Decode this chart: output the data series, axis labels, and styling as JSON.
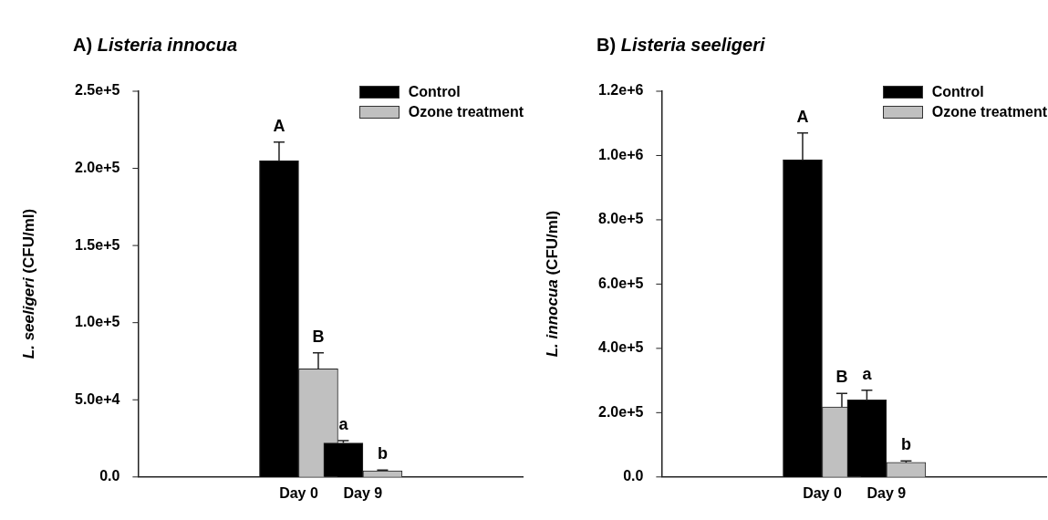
{
  "chart_data": [
    {
      "type": "bar",
      "title": "A) Listeria innocua",
      "ylabel": "L. seeligeri (CFU/ml)",
      "categories": [
        "Day 0",
        "Day 9"
      ],
      "series": [
        {
          "name": "Control",
          "color": "#000000",
          "values": [
            205000,
            22000
          ],
          "errors": [
            12000,
            1500
          ]
        },
        {
          "name": "Ozone treatment",
          "color": "#c0c0c0",
          "values": [
            70000,
            4000
          ],
          "errors": [
            10500,
            500
          ]
        }
      ],
      "ylim": [
        0,
        250000
      ],
      "yticks": [
        {
          "value": 0,
          "label": "0.0"
        },
        {
          "value": 50000,
          "label": "5.0e+4"
        },
        {
          "value": 100000,
          "label": "1.0e+5"
        },
        {
          "value": 150000,
          "label": "1.5e+5"
        },
        {
          "value": 200000,
          "label": "2.0e+5"
        },
        {
          "value": 250000,
          "label": "2.5e+5"
        }
      ],
      "annotations": [
        "A",
        "B",
        "a",
        "b"
      ],
      "legend": "top right",
      "grid": false
    },
    {
      "type": "bar",
      "title": "B) Listeria seeligeri",
      "ylabel": "L. innocua (CFU/ml)",
      "categories": [
        "Day 0",
        "Day 9"
      ],
      "series": [
        {
          "name": "Control",
          "color": "#000000",
          "values": [
            987000,
            240000
          ],
          "errors": [
            83000,
            30000
          ]
        },
        {
          "name": "Ozone treatment",
          "color": "#c0c0c0",
          "values": [
            218000,
            45000
          ],
          "errors": [
            42000,
            5000
          ]
        }
      ],
      "ylim": [
        0,
        1200000
      ],
      "yticks": [
        {
          "value": 0,
          "label": "0.0"
        },
        {
          "value": 200000,
          "label": "2.0e+5"
        },
        {
          "value": 400000,
          "label": "4.0e+5"
        },
        {
          "value": 600000,
          "label": "6.0e+5"
        },
        {
          "value": 800000,
          "label": "8.0e+5"
        },
        {
          "value": 1000000,
          "label": "1.0e+6"
        },
        {
          "value": 1200000,
          "label": "1.2e+6"
        }
      ],
      "annotations": [
        "A",
        "B",
        "a",
        "b"
      ],
      "legend": "top right",
      "grid": false
    }
  ]
}
